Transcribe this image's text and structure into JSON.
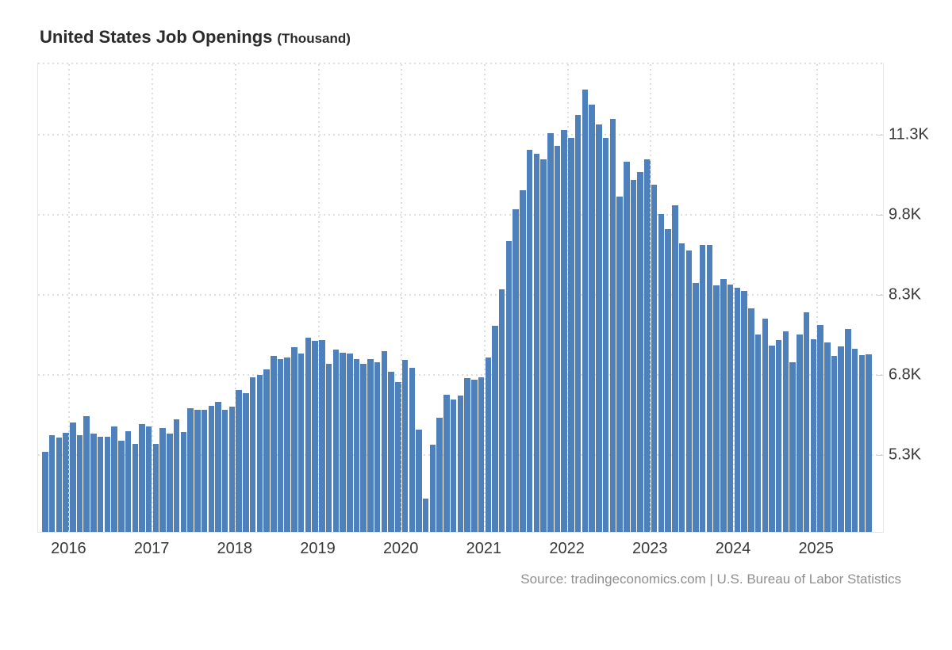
{
  "header": {
    "title": "United States Job Openings",
    "title_suffix": "(Thousand)"
  },
  "footer": {
    "source": "Source: tradingeconomics.com | U.S. Bureau of Labor Statistics"
  },
  "colors": {
    "bar": "#4e81bc",
    "grid": "#dedede",
    "axis": "#e4e4e4",
    "tick_label": "#383838",
    "title": "#2b2b2b",
    "source_text": "#8f8f8f",
    "background": "#ffffff"
  },
  "chart_data": {
    "type": "bar",
    "title": "United States Job Openings (Thousand)",
    "ylabel": "Job Openings (Thousand)",
    "xlabel": "",
    "grid": "dotted",
    "legend": "none",
    "ylim": [
      3850,
      12660
    ],
    "y_ticks": [
      {
        "label": "11.3K",
        "value": 11300
      },
      {
        "label": "9.8K",
        "value": 9800
      },
      {
        "label": "8.3K",
        "value": 8300
      },
      {
        "label": "6.8K",
        "value": 6800
      },
      {
        "label": "5.3K",
        "value": 5300
      }
    ],
    "x_ticks": [
      "2016",
      "2017",
      "2018",
      "2019",
      "2020",
      "2021",
      "2022",
      "2023",
      "2024",
      "2025"
    ],
    "series": [
      {
        "year": 2015,
        "start_month": 9,
        "values": [
          5360,
          5660,
          5620,
          5710
        ]
      },
      {
        "year": 2016,
        "start_month": 1,
        "values": [
          5900,
          5660,
          6020,
          5700,
          5640,
          5630,
          5830,
          5560,
          5740,
          5500,
          5870,
          5830
        ]
      },
      {
        "year": 2017,
        "start_month": 1,
        "values": [
          5500,
          5800,
          5700,
          5970,
          5720,
          6170,
          6140,
          6140,
          6220,
          6290,
          6140,
          6200
        ]
      },
      {
        "year": 2018,
        "start_month": 1,
        "values": [
          6520,
          6450,
          6750,
          6800,
          6900,
          7150,
          7100,
          7120,
          7320,
          7200,
          7500,
          7430
        ]
      },
      {
        "year": 2019,
        "start_month": 1,
        "values": [
          7450,
          7000,
          7280,
          7220,
          7200,
          7100,
          7000,
          7100,
          7040,
          7250,
          6850,
          6670
        ]
      },
      {
        "year": 2020,
        "start_month": 1,
        "values": [
          7080,
          6930,
          5770,
          4470,
          5480,
          6000,
          6430,
          6330,
          6410,
          6740,
          6710,
          6750
        ]
      },
      {
        "year": 2021,
        "start_month": 1,
        "values": [
          7120,
          7720,
          8410,
          9310,
          9900,
          10270,
          11030,
          10950,
          10850,
          11340,
          11100,
          11400
        ]
      },
      {
        "year": 2022,
        "start_month": 1,
        "values": [
          11250,
          11680,
          12150,
          11870,
          11500,
          11250,
          11600,
          10150,
          10800,
          10460,
          10600,
          10850
        ]
      },
      {
        "year": 2023,
        "start_month": 1,
        "values": [
          10370,
          9820,
          9530,
          9980,
          9260,
          9130,
          8530,
          9230,
          9230,
          8480,
          8600,
          8500
        ]
      },
      {
        "year": 2024,
        "start_month": 1,
        "values": [
          8430,
          8380,
          8040,
          7560,
          7860,
          7350,
          7450,
          7610,
          7040,
          7560,
          7970,
          7460
        ]
      },
      {
        "year": 2025,
        "start_month": 1,
        "values": [
          7730,
          7410,
          7150,
          7340,
          7660,
          7290,
          7170,
          7190
        ]
      }
    ]
  }
}
